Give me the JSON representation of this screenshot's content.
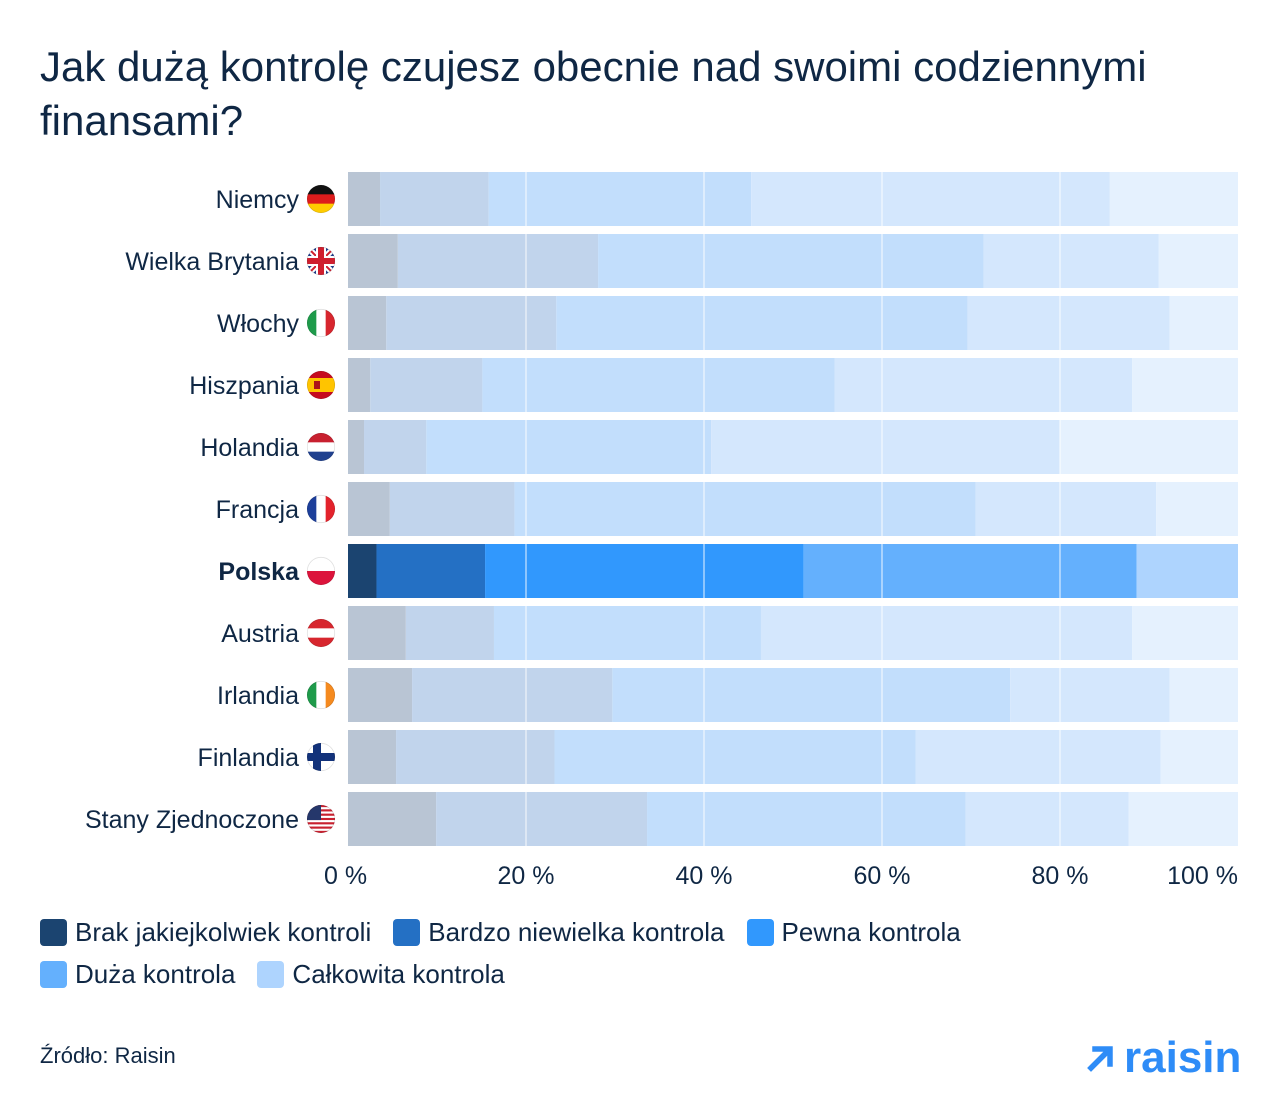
{
  "title": "Jak dużą kontrolę czujesz obecnie nad swoimi codziennymi finansami?",
  "source": "Źródło: Raisin",
  "logo_text": "raisin",
  "chart_data": {
    "type": "bar",
    "orientation": "horizontal",
    "stacked": true,
    "xlim": [
      0,
      100
    ],
    "x_ticks": [
      "0 %",
      "20 %",
      "40 %",
      "60 %",
      "80 %",
      "100 %"
    ],
    "grid": true,
    "legend_position": "bottom-left",
    "categories": [
      "Niemcy",
      "Wielka Brytania",
      "Włochy",
      "Hiszpania",
      "Holandia",
      "Francja",
      "Polska",
      "Austria",
      "Irlandia",
      "Finlandia",
      "Stany Zjednoczone"
    ],
    "highlight": "Polska",
    "flags": [
      "flag-germany-icon",
      "flag-uk-icon",
      "flag-italy-icon",
      "flag-spain-icon",
      "flag-netherlands-icon",
      "flag-france-icon",
      "flag-poland-icon",
      "flag-austria-icon",
      "flag-ireland-icon",
      "flag-finland-icon",
      "flag-usa-icon"
    ],
    "series": [
      {
        "name": "Brak jakiejkolwiek kontroli",
        "color": "#1b4470",
        "muted_color": "#b9c5d4",
        "values": [
          3.6,
          5.6,
          4.3,
          2.5,
          1.8,
          4.7,
          3.2,
          6.5,
          7.2,
          5.4,
          9.9
        ]
      },
      {
        "name": "Bardzo niewielka kontrola",
        "color": "#2470c4",
        "muted_color": "#c1d4ec",
        "values": [
          12.2,
          22.5,
          19.1,
          12.6,
          7.0,
          14.0,
          12.2,
          9.9,
          22.5,
          17.8,
          23.7
        ]
      },
      {
        "name": "Pewna kontrola",
        "color": "#3198fd",
        "muted_color": "#c2defc",
        "values": [
          29.5,
          43.3,
          46.2,
          39.6,
          32.0,
          51.8,
          35.8,
          30.0,
          44.7,
          40.6,
          35.8
        ]
      },
      {
        "name": "Duża kontrola",
        "color": "#64b0fd",
        "muted_color": "#d4e7fd",
        "values": [
          40.3,
          19.7,
          22.7,
          33.4,
          39.2,
          20.3,
          37.4,
          41.7,
          17.9,
          27.5,
          18.3
        ]
      },
      {
        "name": "Całkowita kontrola",
        "color": "#aed4fe",
        "muted_color": "#e5f1fe",
        "values": [
          14.4,
          8.9,
          7.7,
          11.9,
          20.0,
          9.2,
          11.4,
          11.9,
          7.7,
          8.7,
          12.3
        ]
      }
    ]
  }
}
